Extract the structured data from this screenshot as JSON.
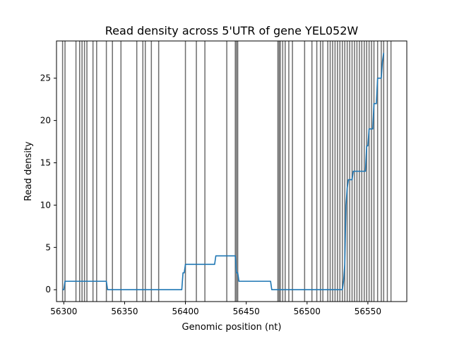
{
  "chart_data": {
    "type": "line",
    "title": "Read density across 5'UTR of gene YEL052W",
    "xlabel": "Genomic position (nt)",
    "ylabel": "Read density",
    "xlim": [
      56294,
      56582
    ],
    "ylim": [
      -1.4,
      29.4
    ],
    "xticks": [
      56300,
      56350,
      56400,
      56450,
      56500,
      56550
    ],
    "yticks": [
      0,
      5,
      10,
      15,
      20,
      25
    ],
    "grid": false,
    "colors": {
      "line": "#1f77b4",
      "vlines": "#555555"
    },
    "vlines": [
      56299,
      56301,
      56310,
      56313,
      56315,
      56317,
      56319,
      56324,
      56327,
      56335,
      56340,
      56347,
      56360,
      56365,
      56367,
      56372,
      56378,
      56400,
      56409,
      56416,
      56434,
      56441,
      56442,
      56443,
      56476,
      56477,
      56478,
      56480,
      56482,
      56485,
      56488,
      56498,
      56504,
      56508,
      56511,
      56513,
      56517,
      56519,
      56521,
      56523,
      56525,
      56527,
      56529,
      56531,
      56533,
      56535,
      56537,
      56539,
      56541,
      56543,
      56545,
      56547,
      56549,
      56551,
      56553,
      56555,
      56558,
      56561,
      56563,
      56566,
      56569
    ],
    "series": [
      {
        "values": [
          [
            56299,
            0
          ],
          [
            56300,
            0
          ],
          [
            56301,
            1
          ],
          [
            56335,
            1
          ],
          [
            56336,
            0
          ],
          [
            56397,
            0
          ],
          [
            56398,
            2
          ],
          [
            56399,
            2
          ],
          [
            56400,
            3
          ],
          [
            56424,
            3
          ],
          [
            56425,
            4
          ],
          [
            56441,
            4
          ],
          [
            56442,
            2
          ],
          [
            56443,
            2
          ],
          [
            56444,
            1
          ],
          [
            56470,
            1
          ],
          [
            56471,
            0
          ],
          [
            56529,
            0
          ],
          [
            56530,
            1
          ],
          [
            56531,
            3
          ],
          [
            56532,
            10
          ],
          [
            56533,
            12
          ],
          [
            56534,
            13
          ],
          [
            56537,
            13
          ],
          [
            56538,
            14
          ],
          [
            56548,
            14
          ],
          [
            56549,
            17
          ],
          [
            56550,
            17
          ],
          [
            56551,
            19
          ],
          [
            56554,
            19
          ],
          [
            56555,
            22
          ],
          [
            56557,
            22
          ],
          [
            56558,
            25
          ],
          [
            56561,
            25
          ],
          [
            56562,
            27
          ],
          [
            56563,
            28
          ]
        ]
      }
    ]
  }
}
